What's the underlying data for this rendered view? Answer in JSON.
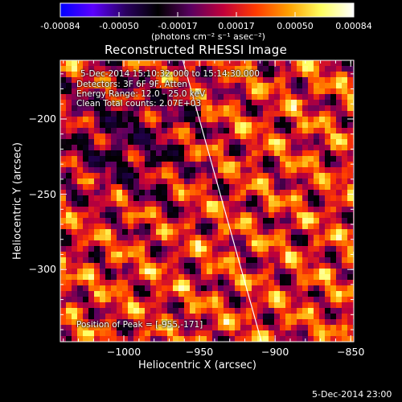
{
  "colorbar": {
    "tick_labels": [
      "-0.00084",
      "-0.00050",
      "-0.00017",
      "0.00017",
      "0.00050",
      "0.00084"
    ],
    "units": "(photons cm⁻² s⁻¹ asec⁻²)",
    "colormap": [
      "#0000ff",
      "#5b00ff",
      "#2a0060",
      "#000000",
      "#5a0060",
      "#c0003a",
      "#ff3a00",
      "#ffa000",
      "#ffff60",
      "#ffffff"
    ]
  },
  "chart_data": {
    "type": "heatmap",
    "title": "Reconstructed RHESSI Image",
    "xlabel": "Heliocentric X (arcsec)",
    "ylabel": "Heliocentric Y (arcsec)",
    "xlim": [
      -1042,
      -848
    ],
    "ylim": [
      -348,
      -161
    ],
    "x_ticks": [
      -1000,
      -950,
      -900,
      -850
    ],
    "x_tick_labels": [
      "−1000",
      "−950",
      "−900",
      "−850"
    ],
    "y_ticks": [
      -200,
      -250,
      -300
    ],
    "y_tick_labels": [
      "−200",
      "−250",
      "−300"
    ],
    "vmin": -0.00084,
    "vmax": 0.00084,
    "limb_line": [
      [
        -961,
        -161
      ],
      [
        -909,
        -348
      ]
    ],
    "peak_position": [
      -955,
      -171
    ],
    "annotations": {
      "time": "5-Dec-2014 15:10:32.000 to 15:14:30.000",
      "detectors": "Detectors: 3F 6F 9F, Atten",
      "energy": "Energy Range: 12.0 - 25.0 keV",
      "clean": "Clean     Total counts: 2.07E+03",
      "peak": "Position of Peak = [-955,-171]"
    }
  },
  "timestamp": "5-Dec-2014 23:00"
}
